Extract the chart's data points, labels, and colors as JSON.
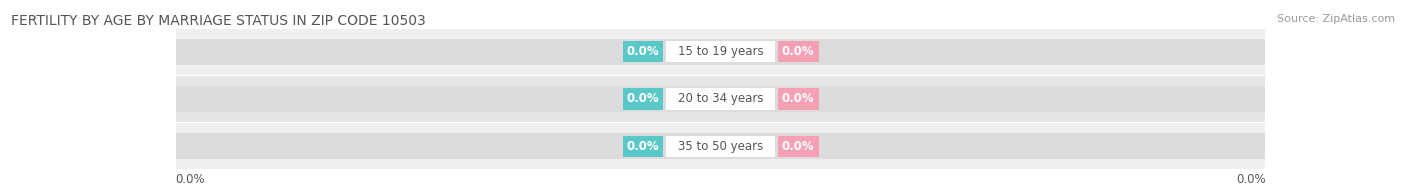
{
  "title": "FERTILITY BY AGE BY MARRIAGE STATUS IN ZIP CODE 10503",
  "source": "Source: ZipAtlas.com",
  "categories": [
    "15 to 19 years",
    "20 to 34 years",
    "35 to 50 years"
  ],
  "married_values": [
    0.0,
    0.0,
    0.0
  ],
  "unmarried_values": [
    0.0,
    0.0,
    0.0
  ],
  "married_color": "#5bc8c8",
  "unmarried_color": "#f5a0b5",
  "row_bg_colors": [
    "#efefef",
    "#e6e6e6",
    "#efefef"
  ],
  "track_color": "#dcdcdc",
  "title_fontsize": 10,
  "source_fontsize": 8,
  "label_fontsize": 8.5,
  "value_label": "0.0%",
  "xlim": [
    -1.0,
    1.0
  ],
  "background_color": "#ffffff",
  "text_color": "#555555",
  "source_color": "#999999"
}
